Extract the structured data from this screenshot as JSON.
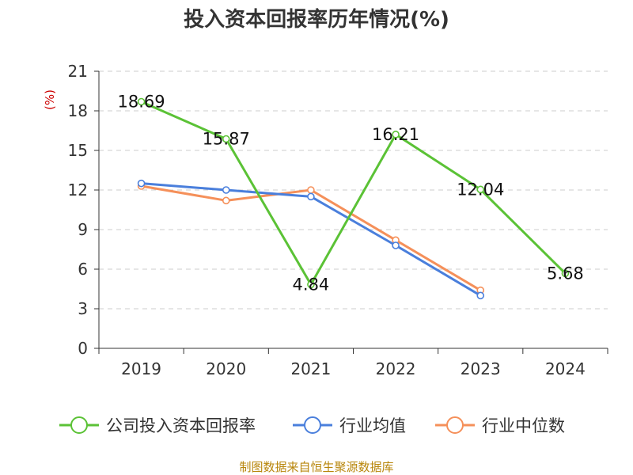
{
  "chart_data": {
    "type": "line",
    "title": "投入资本回报率历年情况(%)",
    "ylabel": "(%)",
    "categories": [
      "2019",
      "2020",
      "2021",
      "2022",
      "2023",
      "2024"
    ],
    "ylim": [
      0,
      21
    ],
    "yticks": [
      "0",
      "3",
      "6",
      "9",
      "12",
      "15",
      "18",
      "21"
    ],
    "grid": true,
    "legend_position": "bottom",
    "series": [
      {
        "name": "公司投入资本回报率",
        "color": "#5bc236",
        "values": [
          18.69,
          15.87,
          4.84,
          16.21,
          12.04,
          5.68
        ],
        "labels": [
          "18.69",
          "15.87",
          "4.84",
          "16.21",
          "12.04",
          "5.68"
        ]
      },
      {
        "name": "行业均值",
        "color": "#4a7fdc",
        "values": [
          12.5,
          12.0,
          11.5,
          7.8,
          4.0,
          null
        ]
      },
      {
        "name": "行业中位数",
        "color": "#f5905a",
        "values": [
          12.3,
          11.2,
          12.0,
          8.2,
          4.4,
          null
        ]
      }
    ],
    "source": "制图数据来自恒生聚源数据库"
  }
}
